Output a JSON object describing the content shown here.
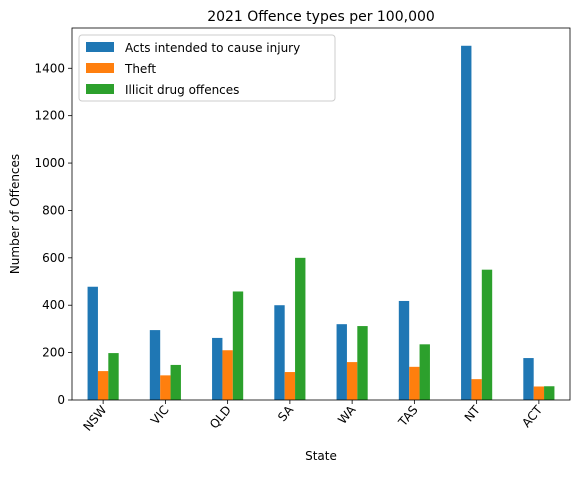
{
  "chart_data": {
    "type": "bar",
    "title": "2021 Offence types per 100,000",
    "xlabel": "State",
    "ylabel": "Number of Offences",
    "categories": [
      "NSW",
      "VIC",
      "QLD",
      "SA",
      "WA",
      "TAS",
      "NT",
      "ACT"
    ],
    "series": [
      {
        "name": "Acts intended to cause injury",
        "color": "#1f77b4",
        "values": [
          478,
          295,
          262,
          400,
          320,
          418,
          1495,
          177
        ]
      },
      {
        "name": "Theft",
        "color": "#ff7f0e",
        "values": [
          122,
          104,
          210,
          118,
          160,
          140,
          88,
          57
        ]
      },
      {
        "name": "Illicit drug offences",
        "color": "#2ca02c",
        "values": [
          198,
          148,
          458,
          600,
          312,
          235,
          550,
          58
        ]
      }
    ],
    "ylim": [
      0,
      1570
    ],
    "yticks": [
      0,
      200,
      400,
      600,
      800,
      1000,
      1200,
      1400
    ],
    "grid": false,
    "legend_position": "top-left"
  }
}
